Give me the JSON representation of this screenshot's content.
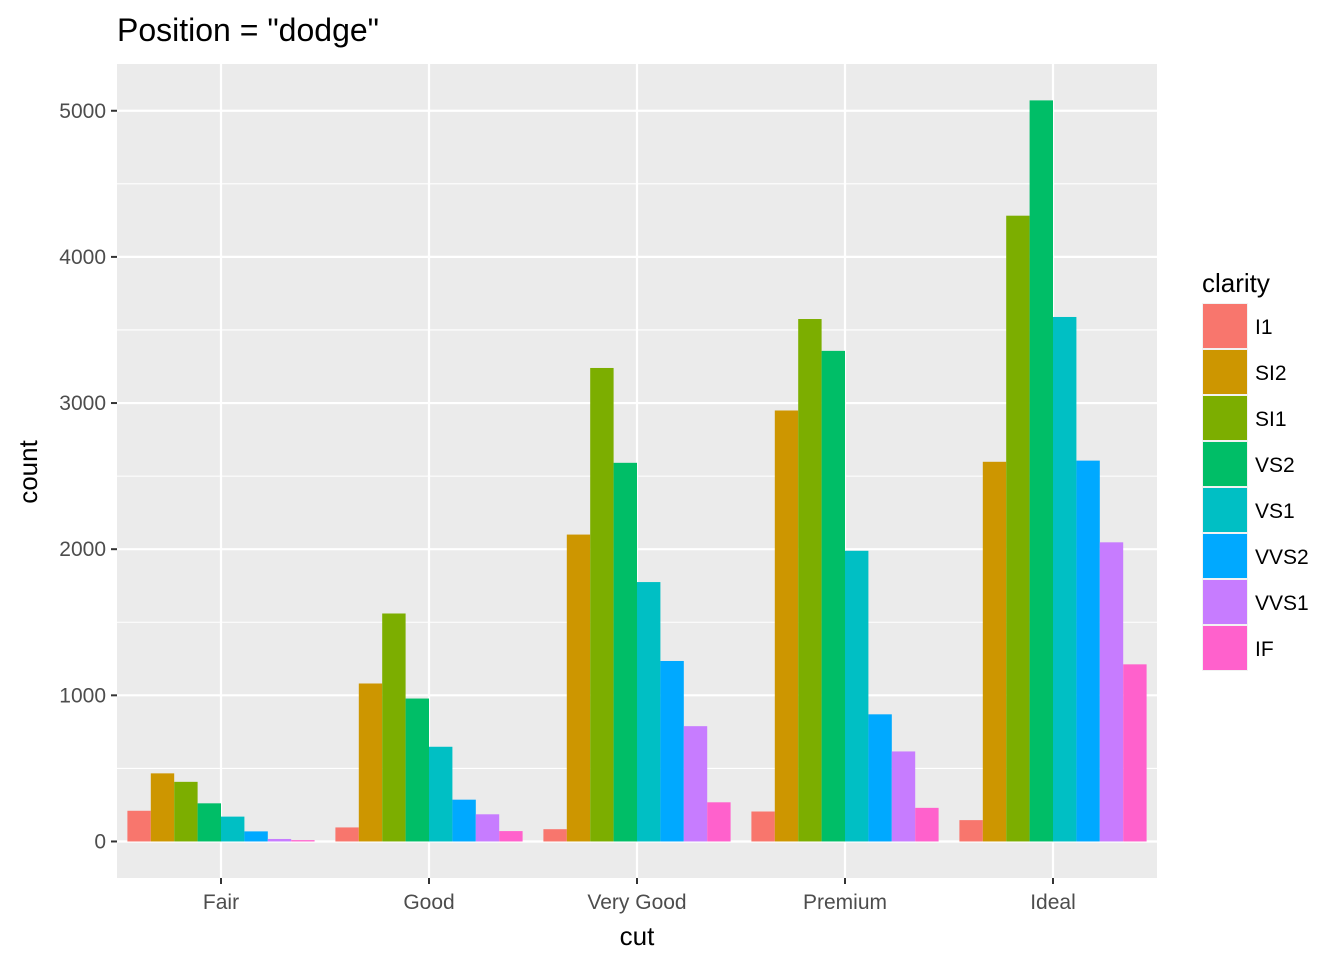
{
  "chart_data": {
    "type": "bar",
    "title": "Position = \"dodge\"",
    "xlabel": "cut",
    "ylabel": "count",
    "categories": [
      "Fair",
      "Good",
      "Very Good",
      "Premium",
      "Ideal"
    ],
    "yticks": [
      0,
      1000,
      2000,
      3000,
      4000,
      5000
    ],
    "ylim": [
      -250,
      5320
    ],
    "grid": true,
    "legend": {
      "title": "clarity",
      "placement": "right"
    },
    "series": [
      {
        "name": "I1",
        "color": "#F8766D",
        "values": [
          210,
          96,
          84,
          205,
          146
        ]
      },
      {
        "name": "SI2",
        "color": "#CD9600",
        "values": [
          466,
          1081,
          2100,
          2949,
          2598
        ]
      },
      {
        "name": "SI1",
        "color": "#7CAE00",
        "values": [
          408,
          1560,
          3240,
          3575,
          4282
        ]
      },
      {
        "name": "VS2",
        "color": "#00BE67",
        "values": [
          261,
          978,
          2591,
          3357,
          5071
        ]
      },
      {
        "name": "VS1",
        "color": "#00BFC4",
        "values": [
          170,
          648,
          1775,
          1989,
          3589
        ]
      },
      {
        "name": "VVS2",
        "color": "#00A9FF",
        "values": [
          69,
          286,
          1235,
          870,
          2606
        ]
      },
      {
        "name": "VVS1",
        "color": "#C77CFF",
        "values": [
          17,
          186,
          789,
          616,
          2047
        ]
      },
      {
        "name": "IF",
        "color": "#FF61CC",
        "values": [
          9,
          71,
          268,
          230,
          1212
        ]
      }
    ]
  }
}
